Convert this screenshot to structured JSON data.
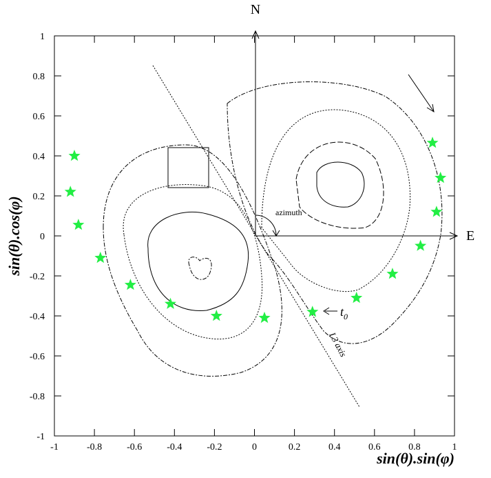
{
  "chart_data": {
    "type": "scatter",
    "x_label": "sin(θ).sin(φ)",
    "y_label": "sin(θ).cos(φ)",
    "x": [
      -0.9,
      -0.92,
      -0.88,
      -0.77,
      -0.62,
      -0.42,
      -0.19,
      0.05,
      0.29,
      0.51,
      0.69,
      0.83,
      0.91,
      0.93,
      0.89
    ],
    "values": [
      0.4,
      0.22,
      0.055,
      -0.11,
      -0.245,
      -0.34,
      -0.4,
      -0.41,
      -0.38,
      -0.31,
      -0.19,
      -0.05,
      0.12,
      0.29,
      0.465
    ],
    "color": "#22ee44",
    "xlim": [
      -1,
      1
    ],
    "ylim": [
      -1,
      1
    ],
    "xticks": [
      -1,
      -0.8,
      -0.6,
      -0.4,
      -0.2,
      0,
      0.2,
      0.4,
      0.6,
      0.8,
      1
    ],
    "yticks": [
      -1,
      -0.8,
      -0.6,
      -0.4,
      -0.2,
      0,
      0.2,
      0.4,
      0.6,
      0.8,
      1
    ],
    "north_label": "N",
    "east_label": "E",
    "azimuth_label": "azimuth",
    "t0_label": {
      "text": "t",
      "subscript": "0"
    },
    "l3_label": "L3 axis"
  }
}
